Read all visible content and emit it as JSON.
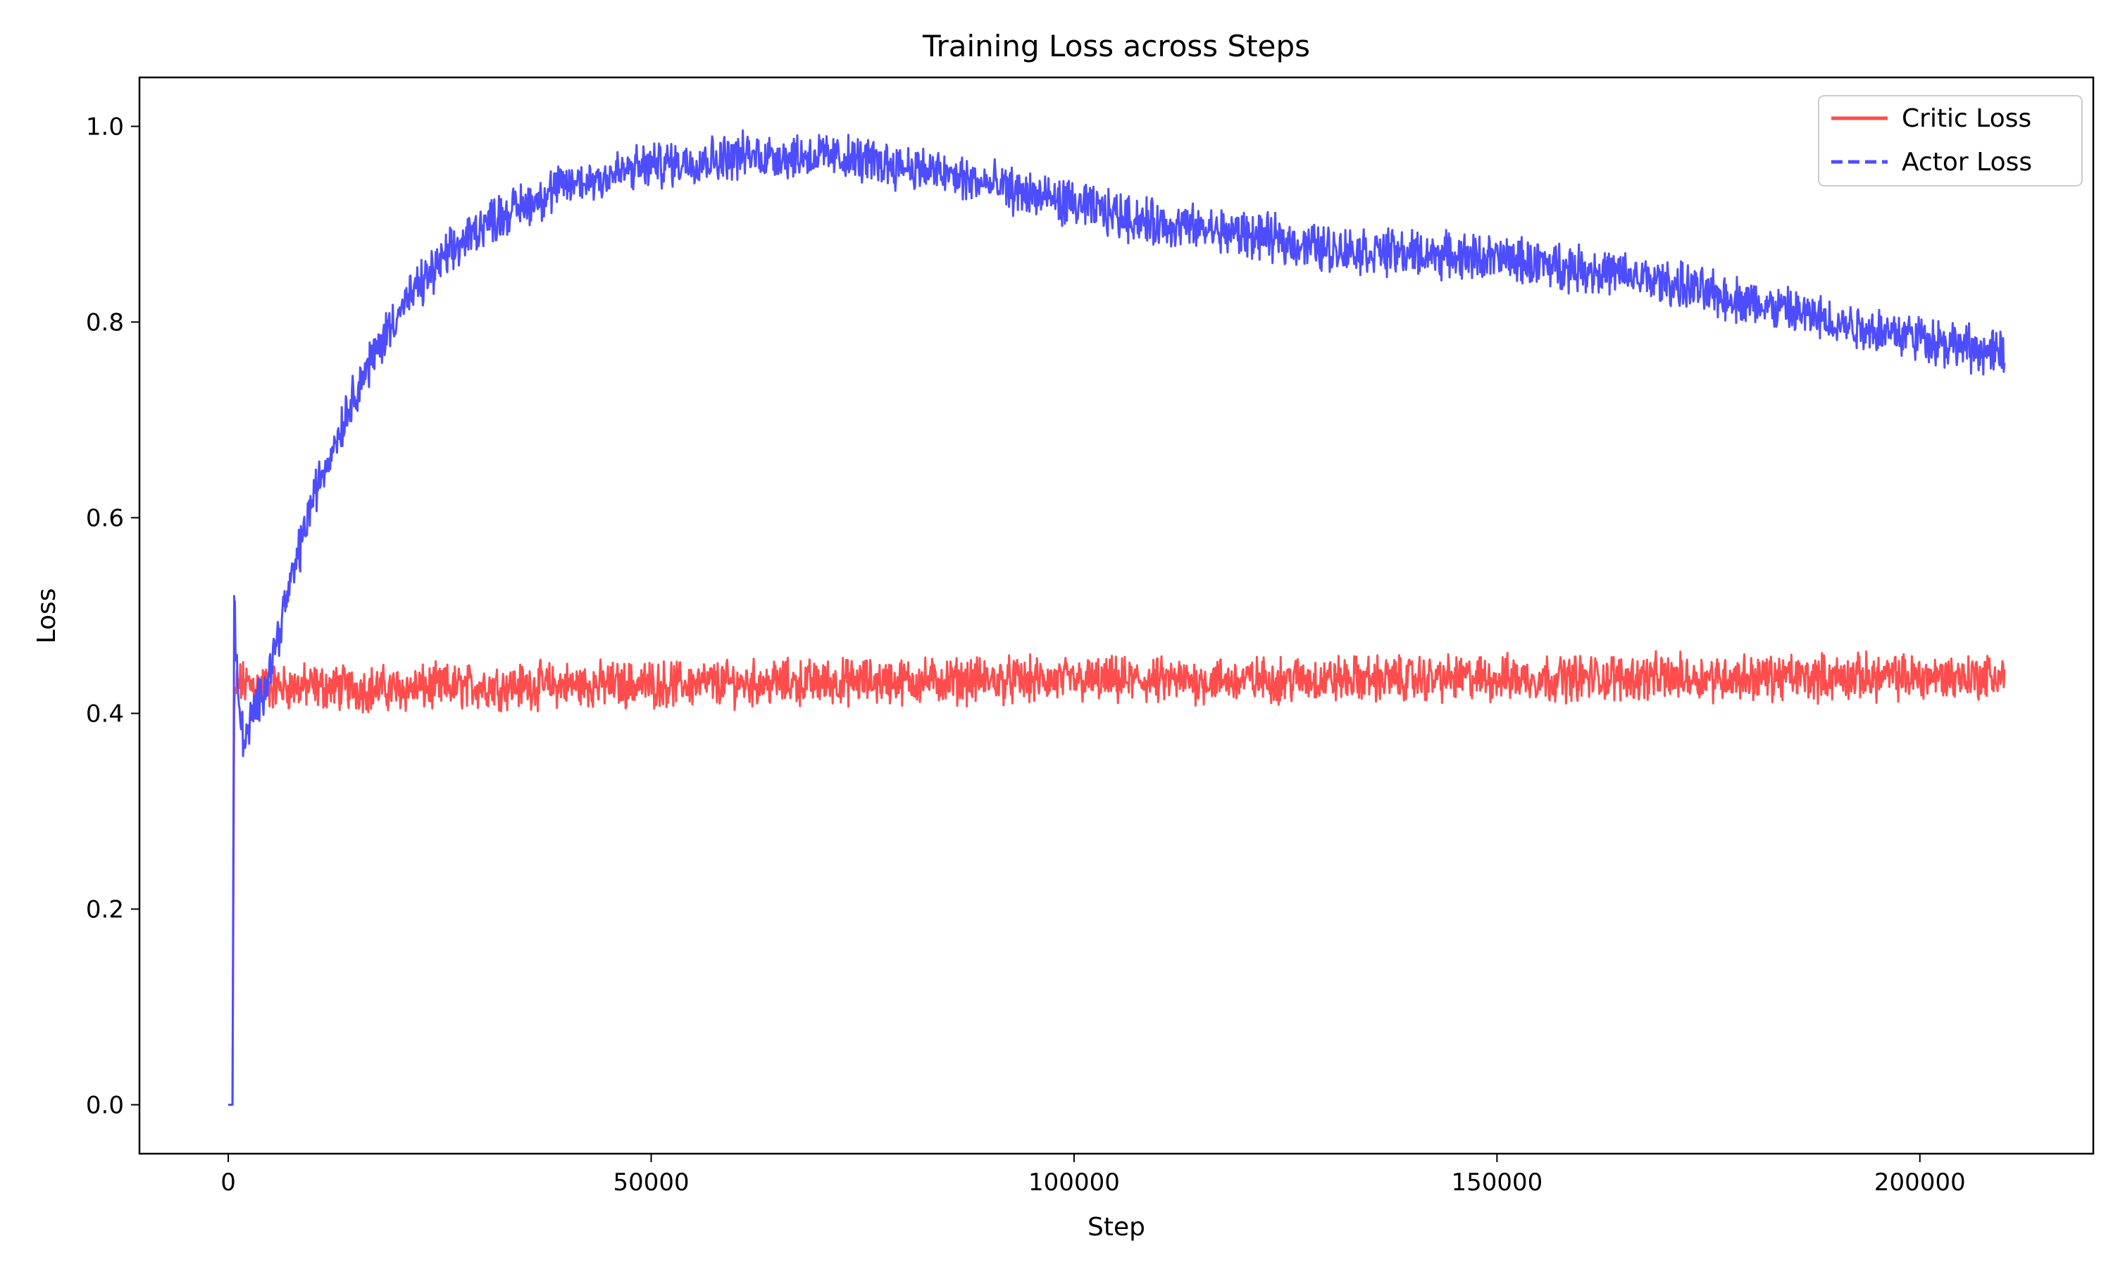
{
  "chart_data": {
    "type": "line",
    "title": "Training Loss across Steps",
    "xlabel": "Step",
    "ylabel": "Loss",
    "xlim": [
      -10500,
      220500
    ],
    "ylim": [
      -0.05,
      1.05
    ],
    "xticks": [
      0,
      50000,
      100000,
      150000,
      200000
    ],
    "xtick_labels": [
      "0",
      "50000",
      "100000",
      "150000",
      "200000"
    ],
    "yticks": [
      0.0,
      0.2,
      0.4,
      0.6,
      0.8,
      1.0
    ],
    "ytick_labels": [
      "0.0",
      "0.2",
      "0.4",
      "0.6",
      "0.8",
      "1.0"
    ],
    "grid": false,
    "legend_position": "top-right",
    "series": [
      {
        "name": "Critic Loss",
        "color": "#ff4d4d",
        "linestyle": "solid",
        "noise_band": 0.035,
        "x": [
          0,
          300,
          500,
          700,
          1000,
          2000,
          5000,
          10000,
          20000,
          30000,
          50000,
          70000,
          90000,
          110000,
          130000,
          150000,
          170000,
          190000,
          210000
        ],
        "y": [
          0.0,
          0.0,
          0.0,
          0.4,
          0.43,
          0.43,
          0.427,
          0.427,
          0.425,
          0.428,
          0.43,
          0.432,
          0.434,
          0.433,
          0.435,
          0.436,
          0.437,
          0.437,
          0.438
        ]
      },
      {
        "name": "Actor Loss",
        "color": "#4d4dff",
        "linestyle": "dashed",
        "noise_band": 0.035,
        "x": [
          0,
          300,
          500,
          700,
          1000,
          1500,
          2000,
          3000,
          4000,
          5000,
          7000,
          10000,
          15000,
          20000,
          25000,
          30000,
          40000,
          50000,
          60000,
          70000,
          80000,
          90000,
          100000,
          110000,
          120000,
          130000,
          140000,
          150000,
          160000,
          170000,
          180000,
          190000,
          200000,
          210000
        ],
        "y": [
          0.0,
          0.0,
          0.0,
          0.52,
          0.44,
          0.39,
          0.37,
          0.4,
          0.42,
          0.45,
          0.52,
          0.62,
          0.73,
          0.81,
          0.86,
          0.9,
          0.94,
          0.96,
          0.97,
          0.97,
          0.96,
          0.94,
          0.92,
          0.9,
          0.89,
          0.875,
          0.87,
          0.865,
          0.855,
          0.84,
          0.82,
          0.8,
          0.785,
          0.765
        ]
      }
    ]
  }
}
